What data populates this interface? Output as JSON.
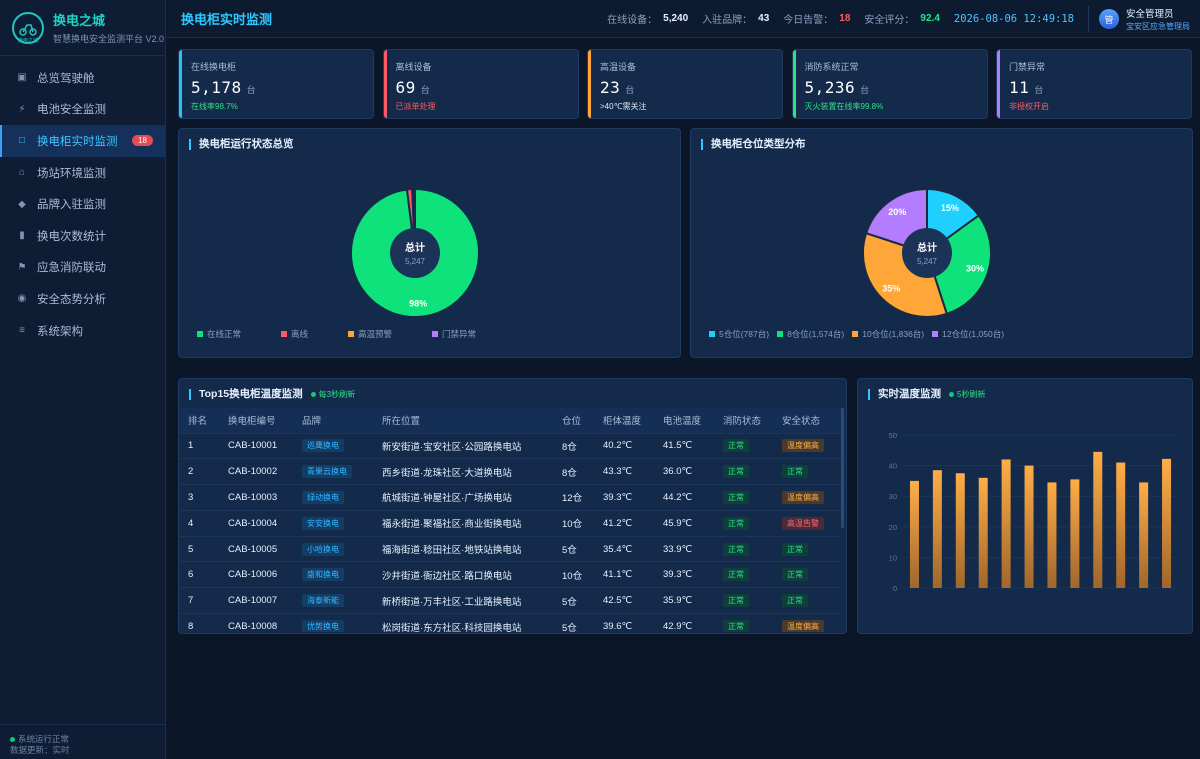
{
  "app": {
    "name": "换电之城",
    "logo_text": "换电之城",
    "subtitle": "智慧换电安全监测平台 V2.0"
  },
  "nav": [
    {
      "label": "总览驾驶舱",
      "icon": "dashboard-icon",
      "glyph": "▣"
    },
    {
      "label": "电池安全监测",
      "icon": "lightning-icon",
      "glyph": "⚡"
    },
    {
      "label": "换电柜实时监测",
      "icon": "cabinet-icon",
      "glyph": "□",
      "badge": "18",
      "active": true
    },
    {
      "label": "场站环境监测",
      "icon": "home-icon",
      "glyph": "⌂"
    },
    {
      "label": "品牌入驻监测",
      "icon": "diamond-icon",
      "glyph": "◆"
    },
    {
      "label": "换电次数统计",
      "icon": "bar-chart-icon",
      "glyph": "▮"
    },
    {
      "label": "应急消防联动",
      "icon": "flag-icon",
      "glyph": "⚑"
    },
    {
      "label": "安全态势分析",
      "icon": "target-icon",
      "glyph": "◉"
    },
    {
      "label": "系统架构",
      "icon": "menu-icon",
      "glyph": "≡"
    }
  ],
  "sidebar_footer": {
    "status": "系统运行正常",
    "update": "数据更新：实时"
  },
  "header": {
    "title": "换电柜实时监测",
    "stats": [
      {
        "label": "在线设备：",
        "value": "5,240",
        "color": "white"
      },
      {
        "label": "入驻品牌：",
        "value": "43",
        "color": "white"
      },
      {
        "label": "今日告警：",
        "value": "18",
        "color": "red"
      },
      {
        "label": "安全评分：",
        "value": "92.4",
        "color": "green"
      }
    ],
    "datetime": "2026-08-06 12:49:18",
    "user": {
      "avatar": "管",
      "name": "安全管理员",
      "role": "宝安区应急管理局"
    }
  },
  "kpis": [
    {
      "label": "在线换电柜",
      "value": "5,178",
      "unit": "台",
      "note": "在线率98.7%",
      "color": "#29c4e8",
      "note_color": "#2fe08a"
    },
    {
      "label": "离线设备",
      "value": "69",
      "unit": "台",
      "note": "已派单处理",
      "color": "#ff5a66",
      "note_color": "#ff5a66"
    },
    {
      "label": "高温设备",
      "value": "23",
      "unit": "台",
      "note": ">40℃需关注",
      "color": "#ffa638",
      "note_color": "#dfe8f5"
    },
    {
      "label": "消防系统正常",
      "value": "5,236",
      "unit": "台",
      "note": "灭火装置在线率99.8%",
      "color": "#2fe08a",
      "note_color": "#2fe08a"
    },
    {
      "label": "门禁异常",
      "value": "11",
      "unit": "台",
      "note": "非授权开启",
      "color": "#b47cff",
      "note_color": "#ff5a66"
    }
  ],
  "status_panel": {
    "title": "换电柜运行状态总览",
    "center_title": "总计",
    "center_value": "5,247"
  },
  "type_panel": {
    "title": "换电柜仓位类型分布",
    "center_title": "总计",
    "center_value": "5,247"
  },
  "chart_data": [
    {
      "type": "pie",
      "title": "换电柜运行状态总览",
      "slices": [
        {
          "name": "在线正常",
          "value": 98,
          "label": "98%",
          "color": "#0fe27a"
        },
        {
          "name": "离线",
          "value": 1.3,
          "color": "#ff5a66"
        },
        {
          "name": "高温预警",
          "value": 0.4,
          "color": "#ffa638"
        },
        {
          "name": "门禁异常",
          "value": 0.3,
          "color": "#b47cff"
        }
      ]
    },
    {
      "type": "pie",
      "title": "换电柜仓位类型分布",
      "slices": [
        {
          "name": "5仓位(787台)",
          "value": 15,
          "label": "15%",
          "color": "#1fd0ff"
        },
        {
          "name": "8仓位(1,574台)",
          "value": 30,
          "label": "30%",
          "color": "#0fe27a"
        },
        {
          "name": "10仓位(1,836台)",
          "value": 35,
          "label": "35%",
          "color": "#ffa638"
        },
        {
          "name": "12仓位(1,050台)",
          "value": 20,
          "label": "20%",
          "color": "#b47cff"
        }
      ]
    },
    {
      "type": "bar",
      "title": "实时温度监测",
      "ylim": [
        0,
        50
      ],
      "yticks": [
        0,
        10,
        20,
        30,
        40,
        50
      ],
      "values": [
        35,
        38.5,
        37.5,
        36,
        42,
        40,
        34.5,
        35.5,
        44.5,
        41,
        34.5,
        42.2
      ],
      "color": "#f0a03a"
    }
  ],
  "table": {
    "title": "Top15换电柜温度监测",
    "refresh": "每3秒刷新",
    "headers": [
      "排名",
      "换电柜编号",
      "品牌",
      "所在位置",
      "仓位",
      "柜体温度",
      "电池温度",
      "消防状态",
      "安全状态"
    ],
    "rows": [
      {
        "rank": "1",
        "id": "CAB-10001",
        "brand": "巡鹰换电",
        "loc": "新安街道·宝安社区·公园路换电站",
        "slot": "8仓",
        "cab": "40.2℃",
        "bat": "41.5℃",
        "bat_hot": true,
        "fire": "正常",
        "safe": "温度偏高",
        "level": "warn"
      },
      {
        "rank": "2",
        "id": "CAB-10002",
        "brand": "青果云换电",
        "loc": "西乡街道·龙珠社区·大道换电站",
        "slot": "8仓",
        "cab": "43.3℃",
        "bat": "36.0℃",
        "bat_hot": false,
        "fire": "正常",
        "safe": "正常",
        "level": "ok"
      },
      {
        "rank": "3",
        "id": "CAB-10003",
        "brand": "绿动换电",
        "loc": "航城街道·钟屋社区·广场换电站",
        "slot": "12仓",
        "cab": "39.3℃",
        "bat": "44.2℃",
        "bat_hot": true,
        "fire": "正常",
        "safe": "温度偏高",
        "level": "warn"
      },
      {
        "rank": "4",
        "id": "CAB-10004",
        "brand": "安安换电",
        "loc": "福永街道·聚福社区·商业街换电站",
        "slot": "10仓",
        "cab": "41.2℃",
        "bat": "45.9℃",
        "bat_hot": true,
        "fire": "正常",
        "safe": "高温告警",
        "level": "alarm"
      },
      {
        "rank": "5",
        "id": "CAB-10005",
        "brand": "小哈换电",
        "loc": "福海街道·稔田社区·地铁站换电站",
        "slot": "5仓",
        "cab": "35.4℃",
        "bat": "33.9℃",
        "bat_hot": false,
        "fire": "正常",
        "safe": "正常",
        "level": "ok"
      },
      {
        "rank": "6",
        "id": "CAB-10006",
        "brand": "盛和换电",
        "loc": "沙井街道·衙边社区·路口换电站",
        "slot": "10仓",
        "cab": "41.1℃",
        "bat": "39.3℃",
        "bat_hot": false,
        "fire": "正常",
        "safe": "正常",
        "level": "ok"
      },
      {
        "rank": "7",
        "id": "CAB-10007",
        "brand": "海泰新能",
        "loc": "新桥街道·万丰社区·工业路换电站",
        "slot": "5仓",
        "cab": "42.5℃",
        "bat": "35.9℃",
        "bat_hot": false,
        "fire": "正常",
        "safe": "正常",
        "level": "ok"
      },
      {
        "rank": "8",
        "id": "CAB-10008",
        "brand": "优势换电",
        "loc": "松岗街道·东方社区·科技园换电站",
        "slot": "5仓",
        "cab": "39.6℃",
        "bat": "42.9℃",
        "bat_hot": true,
        "fire": "正常",
        "safe": "温度偏高",
        "level": "warn"
      }
    ]
  },
  "temp_panel": {
    "title": "实时温度监测",
    "refresh": "5秒刷新"
  }
}
